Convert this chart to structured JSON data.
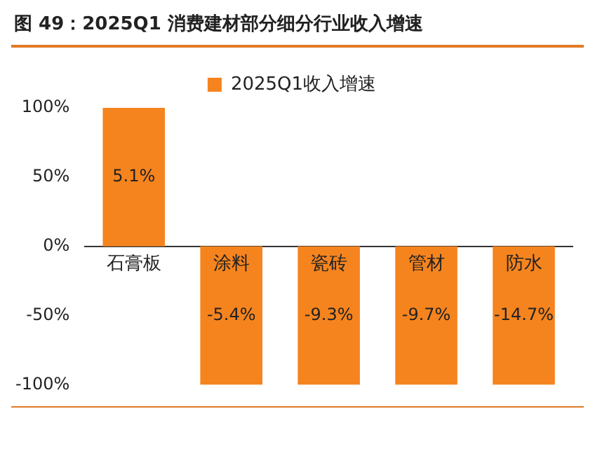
{
  "chart_data": {
    "type": "bar",
    "title": "图 49：2025Q1 消费建材部分细分行业收入增速",
    "categories": [
      "石膏板",
      "涂料",
      "瓷砖",
      "管材",
      "防水"
    ],
    "series": [
      {
        "name": "2025Q1收入增速",
        "color": "#f5841f",
        "values": [
          100,
          -100,
          -100,
          -100,
          -100
        ]
      }
    ],
    "annotations": [
      "5.1%",
      "-5.4%",
      "-9.3%",
      "-9.7%",
      "-14.7%"
    ],
    "ylim": [
      -100,
      100
    ],
    "yticks": [
      {
        "value": 100,
        "label": "100%"
      },
      {
        "value": 50,
        "label": "50%"
      },
      {
        "value": 0,
        "label": "0%"
      },
      {
        "value": -50,
        "label": "-50%"
      },
      {
        "value": -100,
        "label": "-100%"
      }
    ],
    "grid": false,
    "legend": "top"
  }
}
